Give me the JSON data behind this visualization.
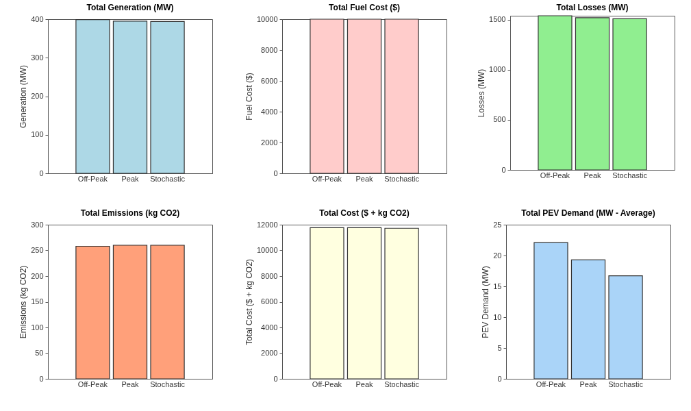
{
  "chart_data": [
    {
      "type": "bar",
      "title": "Total Generation (MW)",
      "ylabel": "Generation (MW)",
      "categories": [
        "Off-Peak",
        "Peak",
        "Stochastic"
      ],
      "values": [
        399,
        395,
        394
      ],
      "color": "#add8e6",
      "ylim": [
        0,
        400
      ],
      "yticks": [
        0,
        100,
        200,
        300,
        400
      ]
    },
    {
      "type": "bar",
      "title": "Total Fuel Cost ($)",
      "ylabel": "Fuel Cost ($)",
      "categories": [
        "Off-Peak",
        "Peak",
        "Stochastic"
      ],
      "values": [
        10000,
        10000,
        10000
      ],
      "color": "#ffcccb",
      "ylim": [
        0,
        10000
      ],
      "yticks": [
        0,
        2000,
        4000,
        6000,
        8000,
        10000
      ]
    },
    {
      "type": "bar",
      "title": "Total Losses (MW)",
      "ylabel": "Losses (MW)",
      "categories": [
        "Off-Peak",
        "Peak",
        "Stochastic"
      ],
      "values": [
        1540,
        1520,
        1510
      ],
      "color": "#90ee90",
      "ylim": [
        0,
        1540
      ],
      "yticks": [
        0,
        500,
        1000,
        1500
      ]
    },
    {
      "type": "bar",
      "title": "Total Emissions (kg CO2)",
      "ylabel": "Emissions (kg CO2)",
      "categories": [
        "Off-Peak",
        "Peak",
        "Stochastic"
      ],
      "values": [
        258,
        260,
        260
      ],
      "color": "#ffa07a",
      "ylim": [
        0,
        300
      ],
      "yticks": [
        0,
        50,
        100,
        150,
        200,
        250,
        300
      ]
    },
    {
      "type": "bar",
      "title": "Total Cost ($ + kg CO2)",
      "ylabel": "Total Cost ($ + kg CO2)",
      "categories": [
        "Off-Peak",
        "Peak",
        "Stochastic"
      ],
      "values": [
        11770,
        11770,
        11720
      ],
      "color": "#ffffe0",
      "ylim": [
        0,
        12000
      ],
      "yticks": [
        0,
        2000,
        4000,
        6000,
        8000,
        10000,
        12000
      ]
    },
    {
      "type": "bar",
      "title": "Total PEV Demand (MW - Average)",
      "ylabel": "PEV Demand (MW)",
      "categories": [
        "Off-Peak",
        "Peak",
        "Stochastic"
      ],
      "values": [
        22.1,
        19.3,
        16.7
      ],
      "color": "#aad4f8",
      "ylim": [
        0,
        25
      ],
      "yticks": [
        0,
        5,
        10,
        15,
        20,
        25
      ]
    }
  ]
}
